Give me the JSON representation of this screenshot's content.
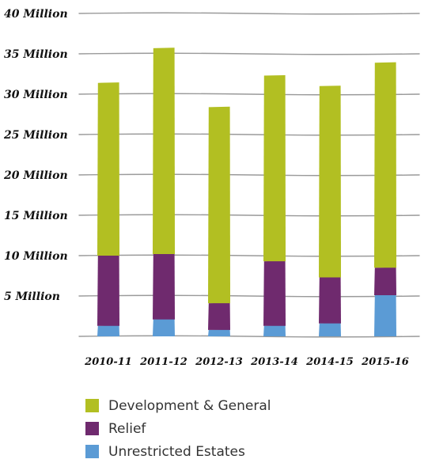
{
  "chart_data": {
    "type": "bar",
    "stacked": true,
    "categories": [
      "2010-11",
      "2011-12",
      "2012-13",
      "2013-14",
      "2014-15",
      "2015-16"
    ],
    "series": [
      {
        "name": "Unrestricted Estates",
        "color": "#5b9bd5",
        "values": [
          1.3,
          2.1,
          0.8,
          1.3,
          1.6,
          5.1
        ]
      },
      {
        "name": "Relief",
        "color": "#6f2a6e",
        "values": [
          8.7,
          8.1,
          3.3,
          8.0,
          5.7,
          3.4
        ]
      },
      {
        "name": "Development & General",
        "color": "#b2bf22",
        "values": [
          21.4,
          25.5,
          24.3,
          23.0,
          23.7,
          25.4
        ]
      }
    ],
    "yticks": [
      "",
      "5 Million",
      "10 Million",
      "15 Million",
      "20 Million",
      "25 Million",
      "30 Million",
      "35 Million",
      "40 Million"
    ],
    "ylim": [
      0,
      40
    ],
    "grid": true,
    "legend_position": "bottom"
  },
  "legend": [
    {
      "label": "Development & General",
      "color": "#b2bf22"
    },
    {
      "label": "Relief",
      "color": "#6f2a6e"
    },
    {
      "label": "Unrestricted Estates",
      "color": "#5b9bd5"
    }
  ]
}
